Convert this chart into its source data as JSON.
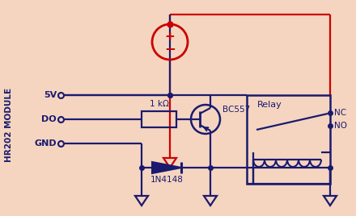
{
  "bg_color": "#f5d5c0",
  "line_color": "#1a1a6e",
  "red_color": "#cc0000",
  "text_color": "#1a1a6e",
  "figsize": [
    4.4,
    2.68
  ],
  "dpi": 100,
  "module_label": "HR202 MODULE",
  "pin_labels": [
    "5V",
    "DO",
    "GND"
  ],
  "transistor_label": "BC557",
  "resistor_label": "1 kΩ",
  "diode_label": "1N4148",
  "relay_label": "Relay",
  "nc_label": "NC",
  "no_label": "NO"
}
